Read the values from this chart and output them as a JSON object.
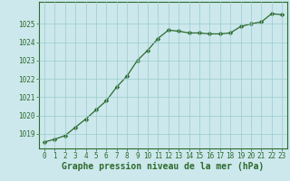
{
  "x": [
    0,
    1,
    2,
    3,
    4,
    5,
    6,
    7,
    8,
    9,
    10,
    11,
    12,
    13,
    14,
    15,
    16,
    17,
    18,
    19,
    20,
    21,
    22,
    23
  ],
  "y": [
    1018.55,
    1018.7,
    1018.9,
    1019.35,
    1019.8,
    1020.3,
    1020.8,
    1021.55,
    1022.15,
    1023.0,
    1023.55,
    1024.2,
    1024.65,
    1024.6,
    1024.5,
    1024.5,
    1024.45,
    1024.45,
    1024.5,
    1024.85,
    1025.0,
    1025.1,
    1025.55,
    1025.5
  ],
  "line_color": "#2d6a2d",
  "marker": "D",
  "marker_size": 2.5,
  "bg_color": "#cce8ec",
  "grid_color": "#99cccc",
  "xlabel": "Graphe pression niveau de la mer (hPa)",
  "xlabel_color": "#2d6a2d",
  "ylabel_ticks": [
    1019,
    1020,
    1021,
    1022,
    1023,
    1024,
    1025
  ],
  "ylim": [
    1018.2,
    1026.2
  ],
  "xlim": [
    -0.5,
    23.5
  ],
  "xtick_labels": [
    "0",
    "1",
    "2",
    "3",
    "4",
    "5",
    "6",
    "7",
    "8",
    "9",
    "10",
    "11",
    "12",
    "13",
    "14",
    "15",
    "16",
    "17",
    "18",
    "19",
    "20",
    "21",
    "22",
    "23"
  ],
  "tick_color": "#2d6a2d",
  "spine_color": "#2d6a2d",
  "tick_fontsize": 5.5,
  "xlabel_fontsize": 7.0
}
